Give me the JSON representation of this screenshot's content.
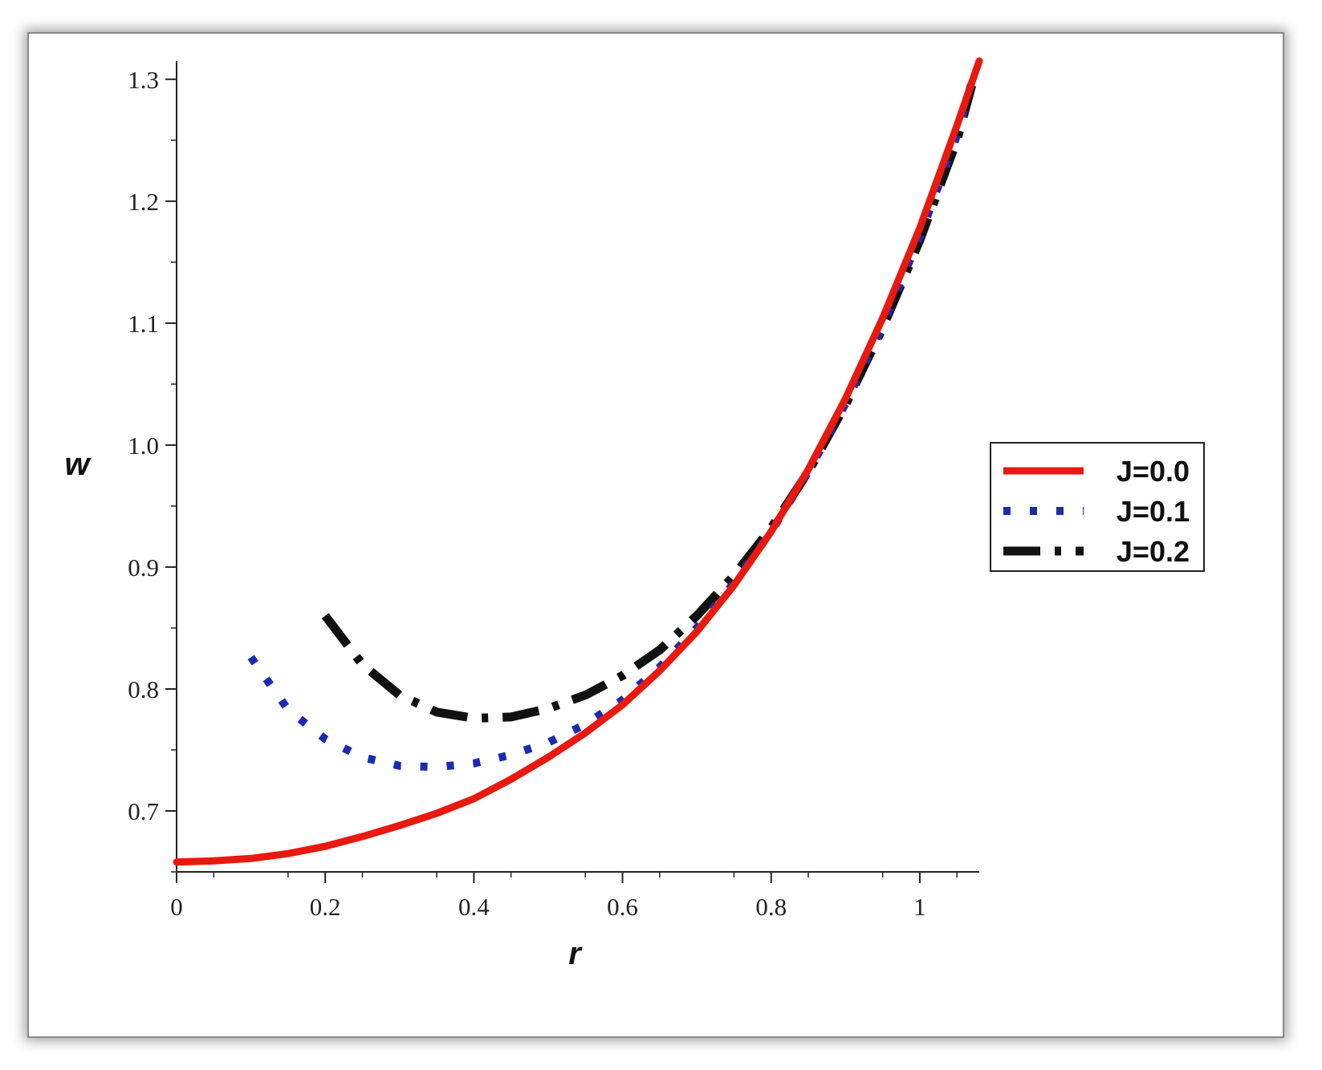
{
  "chart_data": {
    "type": "line",
    "title": "",
    "xlabel": "r",
    "ylabel": "w",
    "xlim": [
      0,
      1.08
    ],
    "ylim": [
      0.65,
      1.315
    ],
    "x_ticks": [
      0,
      0.2,
      0.4,
      0.6,
      0.8,
      1
    ],
    "x_tick_labels": [
      "0",
      "0.2",
      "0.4",
      "0.6",
      "0.8",
      "1"
    ],
    "y_ticks": [
      0.7,
      0.8,
      0.9,
      1.0,
      1.1,
      1.2,
      1.3
    ],
    "y_tick_labels": [
      "0.7",
      "0.8",
      "0.9",
      "1.0",
      "1.1",
      "1.2",
      "1.3"
    ],
    "grid": false,
    "legend_position": "right",
    "series": [
      {
        "name": "J=0.0",
        "color": "#e8190f",
        "style": "solid",
        "x": [
          0,
          0.05,
          0.1,
          0.15,
          0.2,
          0.25,
          0.3,
          0.35,
          0.4,
          0.45,
          0.5,
          0.55,
          0.6,
          0.65,
          0.7,
          0.75,
          0.8,
          0.85,
          0.9,
          0.95,
          1.0,
          1.05,
          1.08
        ],
        "y": [
          0.658,
          0.659,
          0.661,
          0.665,
          0.671,
          0.679,
          0.688,
          0.698,
          0.71,
          0.726,
          0.744,
          0.764,
          0.787,
          0.815,
          0.847,
          0.885,
          0.929,
          0.98,
          1.038,
          1.104,
          1.178,
          1.262,
          1.315
        ]
      },
      {
        "name": "J=0.1",
        "color": "#1a2bb0",
        "style": "dotted",
        "x": [
          0.1,
          0.15,
          0.2,
          0.25,
          0.3,
          0.35,
          0.4,
          0.45,
          0.5,
          0.55,
          0.6,
          0.65,
          0.7,
          0.75,
          0.8,
          0.85,
          0.9,
          0.95,
          1.0,
          1.05,
          1.07
        ],
        "y": [
          0.826,
          0.783,
          0.759,
          0.744,
          0.737,
          0.736,
          0.739,
          0.746,
          0.756,
          0.771,
          0.791,
          0.818,
          0.85,
          0.887,
          0.929,
          0.978,
          1.034,
          1.098,
          1.171,
          1.254,
          1.298
        ]
      },
      {
        "name": "J=0.2",
        "color": "#111111",
        "style": "dashdot",
        "x": [
          0.2,
          0.25,
          0.3,
          0.35,
          0.4,
          0.45,
          0.5,
          0.55,
          0.6,
          0.65,
          0.7,
          0.75,
          0.8,
          0.85,
          0.9,
          0.95,
          1.0,
          1.05,
          1.07
        ],
        "y": [
          0.86,
          0.82,
          0.795,
          0.781,
          0.776,
          0.777,
          0.784,
          0.795,
          0.811,
          0.832,
          0.86,
          0.893,
          0.932,
          0.978,
          1.033,
          1.096,
          1.168,
          1.25,
          1.295
        ]
      }
    ]
  }
}
